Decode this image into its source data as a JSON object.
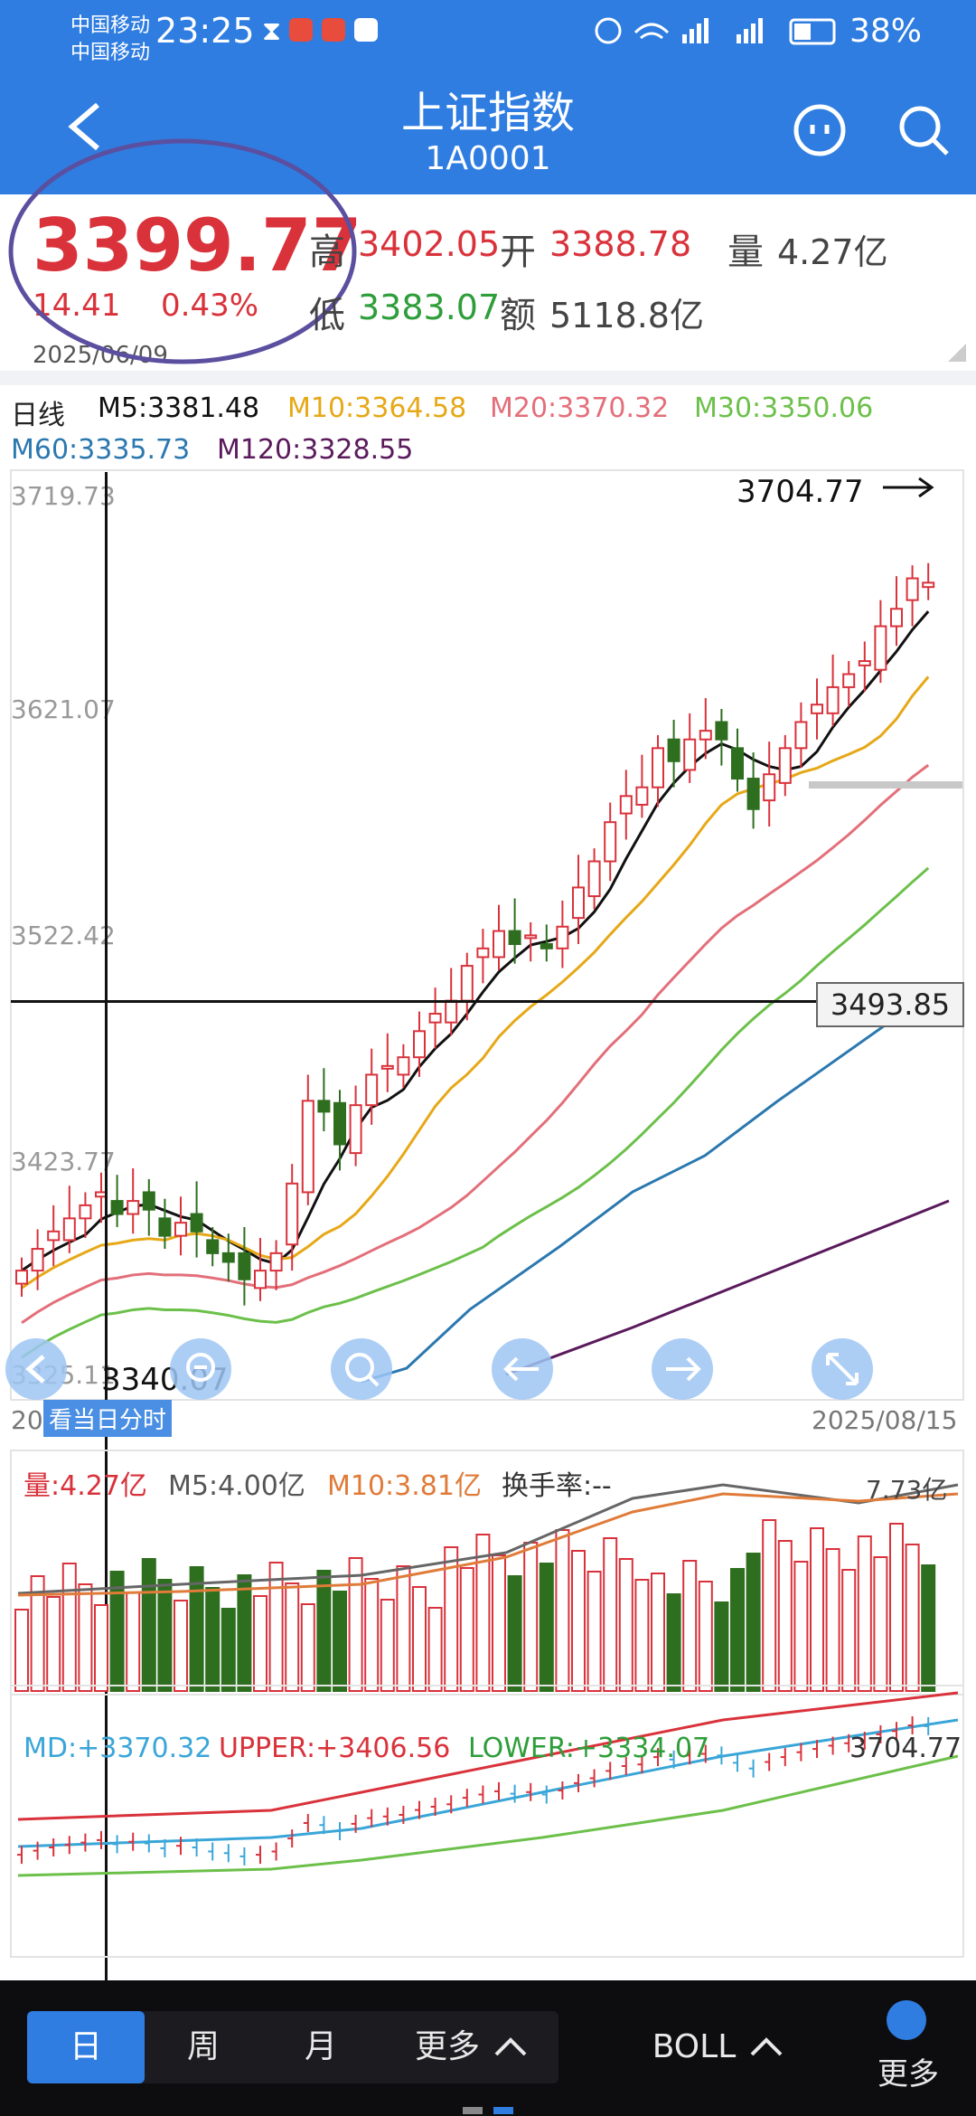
{
  "status_bar": {
    "carrier_1": "中国移动",
    "carrier_2": "中国移动",
    "time": "23:25",
    "battery": "38%"
  },
  "header": {
    "title": "上证指数",
    "code": "1A0001"
  },
  "quote": {
    "price": "3399.77",
    "change": "14.41",
    "change_pct": "0.43%",
    "date": "2025/06/09",
    "high_label": "高",
    "high": "3402.05",
    "open_label": "开",
    "open": "3388.78",
    "volume_label": "量",
    "volume": "4.27亿",
    "low_label": "低",
    "low": "3383.07",
    "amount_label": "额",
    "amount": "5118.8亿"
  },
  "ma_legend": {
    "period": "日线",
    "m5": "M5:3381.48",
    "m10": "M10:3364.58",
    "m20": "M20:3370.32",
    "m30": "M30:3350.06",
    "m60": "M60:3335.73",
    "m120": "M120:3328.55"
  },
  "kline": {
    "y_ticks": [
      "3719.73",
      "3621.07",
      "3522.42",
      "3423.77",
      "3325.11"
    ],
    "max_label": "3704.77",
    "min_label": "3340.07",
    "crosshair_value": "3493.85",
    "start_date": "20",
    "end_date": "2025/08/15",
    "day_detail_button": "看当日分时"
  },
  "volume_panel": {
    "vol": "量:4.27亿",
    "m5": "M5:4.00亿",
    "m10": "M10:3.81亿",
    "turnover": "换手率:--",
    "max_label": "7.73亿"
  },
  "boll_panel": {
    "md": "MD:+3370.32",
    "upper": "UPPER:+3406.56",
    "lower": "LOWER:+3334.07",
    "max_label": "3704.77"
  },
  "bottom_tabs": {
    "day": "日",
    "week": "周",
    "month": "月",
    "more": "更多",
    "indicator": "BOLL",
    "more_right": "更多"
  },
  "colors": {
    "primary": "#2f7de1",
    "up": "#d9323b",
    "down": "#2e6e1f",
    "m5": "#111111",
    "m10": "#e6a817",
    "m20": "#e36f7a",
    "m30": "#6cc04a",
    "m60": "#2b78b0",
    "m120": "#5a1a5c"
  }
}
